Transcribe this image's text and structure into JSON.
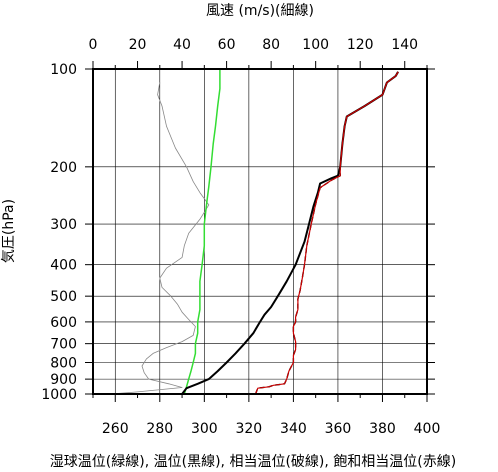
{
  "chart_data": {
    "type": "line",
    "title": "",
    "top_axis": {
      "label": "風速 (m/s)(細線)",
      "range": [
        0,
        150
      ],
      "ticks": [
        0,
        20,
        40,
        60,
        80,
        100,
        120,
        140
      ]
    },
    "bottom_axis": {
      "label": "湿球温位(緑線), 温位(黒線), 相当温位(破線), 飽和相当温位(赤線)",
      "unit": "K",
      "range": [
        250,
        400
      ],
      "ticks": [
        260,
        280,
        300,
        320,
        340,
        360,
        380,
        400
      ]
    },
    "y_axis": {
      "label": "気圧(hPa)",
      "scale": "log",
      "range": [
        1000,
        100
      ],
      "ticks": [
        100,
        200,
        300,
        400,
        500,
        600,
        700,
        800,
        900,
        1000
      ]
    },
    "grid": true,
    "series": [
      {
        "color": "#888888",
        "width": 0.8,
        "axis": "top",
        "points": [
          [
            8,
            1000
          ],
          [
            20,
            985
          ],
          [
            40,
            955
          ],
          [
            34,
            930
          ],
          [
            25,
            900
          ],
          [
            23,
            860
          ],
          [
            22,
            820
          ],
          [
            24,
            780
          ],
          [
            27,
            750
          ],
          [
            33,
            720
          ],
          [
            40,
            690
          ],
          [
            45,
            660
          ],
          [
            46,
            620
          ],
          [
            43,
            590
          ],
          [
            40,
            560
          ],
          [
            38,
            530
          ],
          [
            35,
            500
          ],
          [
            31,
            470
          ],
          [
            30,
            440
          ],
          [
            33,
            410
          ],
          [
            40,
            380
          ],
          [
            41,
            350
          ],
          [
            43,
            320
          ],
          [
            48,
            290
          ],
          [
            52,
            262
          ],
          [
            48,
            240
          ],
          [
            45,
            222
          ],
          [
            42,
            200
          ],
          [
            37,
            175
          ],
          [
            33,
            150
          ],
          [
            31,
            130
          ],
          [
            29,
            120
          ],
          [
            30,
            110
          ]
        ]
      },
      {
        "color": "#33dd33",
        "width": 1.5,
        "axis": "bottom",
        "points": [
          [
            291,
            1000
          ],
          [
            292,
            950
          ],
          [
            293,
            900
          ],
          [
            294,
            850
          ],
          [
            295,
            800
          ],
          [
            296,
            750
          ],
          [
            296,
            700
          ],
          [
            297,
            650
          ],
          [
            297,
            600
          ],
          [
            298,
            550
          ],
          [
            298,
            500
          ],
          [
            298,
            450
          ],
          [
            299,
            400
          ],
          [
            300,
            350
          ],
          [
            300,
            300
          ],
          [
            301,
            260
          ],
          [
            302,
            230
          ],
          [
            303,
            200
          ],
          [
            304,
            170
          ],
          [
            305,
            150
          ],
          [
            306,
            130
          ],
          [
            307,
            115
          ],
          [
            307,
            100
          ]
        ]
      },
      {
        "color": "#000000",
        "width": 2,
        "axis": "bottom",
        "points": [
          [
            290,
            1000
          ],
          [
            292,
            960
          ],
          [
            297,
            930
          ],
          [
            302,
            900
          ],
          [
            306,
            850
          ],
          [
            310,
            800
          ],
          [
            314,
            750
          ],
          [
            318,
            700
          ],
          [
            322,
            650
          ],
          [
            325,
            600
          ],
          [
            327,
            570
          ],
          [
            330,
            540
          ],
          [
            333,
            500
          ],
          [
            337,
            450
          ],
          [
            341,
            400
          ],
          [
            345,
            340
          ],
          [
            347,
            300
          ],
          [
            349,
            265
          ],
          [
            351,
            240
          ],
          [
            352,
            225
          ],
          [
            357,
            217
          ],
          [
            360,
            213
          ],
          [
            361,
            200
          ],
          [
            362,
            170
          ],
          [
            363,
            150
          ],
          [
            364,
            140
          ],
          [
            372,
            130
          ],
          [
            380,
            120
          ],
          [
            381,
            115
          ],
          [
            382,
            110
          ],
          [
            386,
            105
          ],
          [
            387,
            102
          ]
        ]
      },
      {
        "color": "#000000",
        "width": 1.4,
        "dash": "5,3",
        "axis": "bottom",
        "points": [
          [
            323,
            1000
          ],
          [
            324,
            960
          ],
          [
            329,
            950
          ],
          [
            331,
            940
          ],
          [
            336,
            930
          ],
          [
            337,
            900
          ],
          [
            338,
            850
          ],
          [
            340,
            800
          ],
          [
            340,
            760
          ],
          [
            341,
            730
          ],
          [
            341,
            690
          ],
          [
            340,
            650
          ],
          [
            340,
            620
          ],
          [
            341,
            600
          ],
          [
            341,
            580
          ],
          [
            342,
            550
          ],
          [
            342,
            510
          ],
          [
            343,
            480
          ],
          [
            344,
            440
          ],
          [
            345,
            400
          ],
          [
            346,
            350
          ],
          [
            348,
            300
          ],
          [
            350,
            260
          ],
          [
            352,
            232
          ],
          [
            357,
            220
          ],
          [
            361,
            213
          ],
          [
            361,
            200
          ],
          [
            362,
            170
          ],
          [
            363,
            150
          ],
          [
            364,
            140
          ],
          [
            372,
            130
          ],
          [
            380,
            120
          ],
          [
            381,
            115
          ],
          [
            382,
            110
          ],
          [
            386,
            105
          ],
          [
            387,
            102
          ]
        ]
      },
      {
        "color": "#cc0000",
        "width": 1.2,
        "axis": "bottom",
        "points": [
          [
            323,
            1000
          ],
          [
            324,
            960
          ],
          [
            329,
            950
          ],
          [
            331,
            940
          ],
          [
            336,
            930
          ],
          [
            337,
            900
          ],
          [
            338,
            850
          ],
          [
            340,
            800
          ],
          [
            340,
            760
          ],
          [
            341,
            730
          ],
          [
            341,
            690
          ],
          [
            340,
            650
          ],
          [
            340,
            620
          ],
          [
            341,
            600
          ],
          [
            341,
            580
          ],
          [
            342,
            550
          ],
          [
            342,
            510
          ],
          [
            343,
            480
          ],
          [
            344,
            440
          ],
          [
            345,
            400
          ],
          [
            346,
            350
          ],
          [
            348,
            300
          ],
          [
            350,
            260
          ],
          [
            352,
            232
          ],
          [
            357,
            220
          ],
          [
            361,
            213
          ],
          [
            361,
            200
          ],
          [
            362,
            170
          ],
          [
            363,
            150
          ],
          [
            364,
            140
          ],
          [
            372,
            130
          ],
          [
            380,
            120
          ],
          [
            381,
            115
          ],
          [
            382,
            110
          ],
          [
            386,
            105
          ],
          [
            387,
            102
          ]
        ]
      }
    ]
  }
}
